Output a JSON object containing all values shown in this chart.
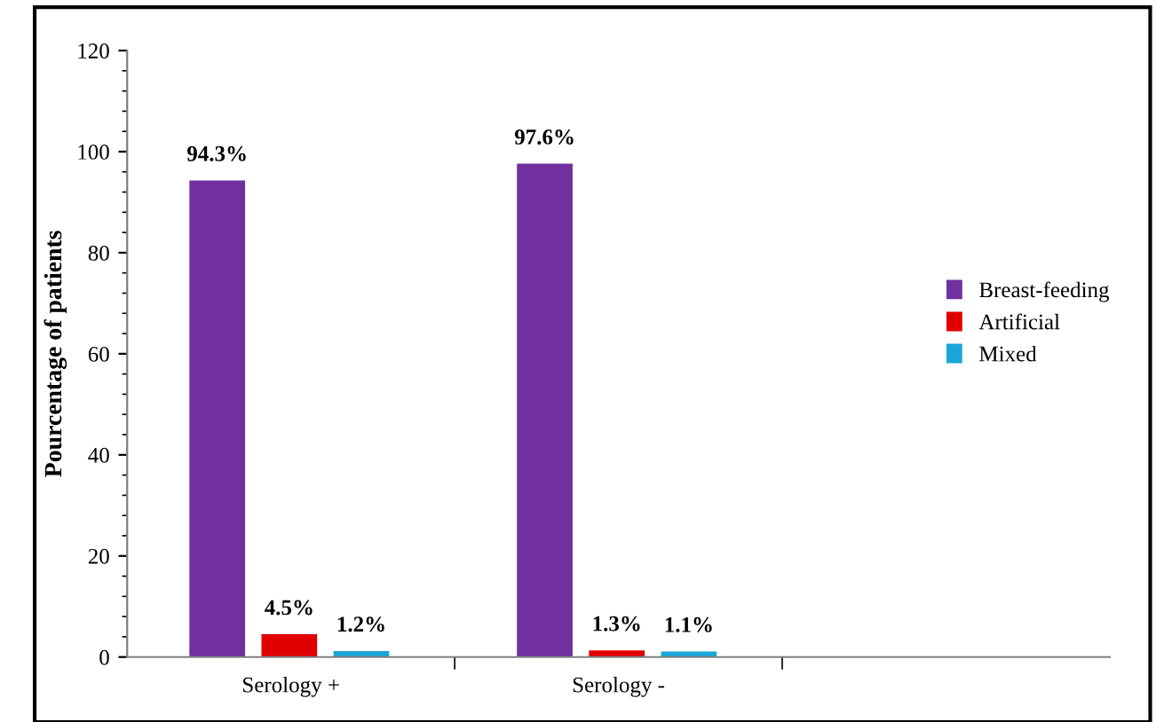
{
  "chart_data": {
    "type": "bar",
    "ylabel": "Pourcentage of patients",
    "categories": [
      "Serology +",
      "Serology -",
      null
    ],
    "series": [
      {
        "name": "Breast-feeding",
        "color": "#7030a0",
        "values": [
          94.3,
          97.6,
          null
        ],
        "value_labels": [
          "94.3%",
          "97.6%",
          null
        ]
      },
      {
        "name": "Artificial",
        "color": "#e00000",
        "values": [
          4.5,
          1.3,
          null
        ],
        "value_labels": [
          "4.5%",
          "1.3%",
          null
        ]
      },
      {
        "name": "Mixed",
        "color": "#1aa6d8",
        "values": [
          1.2,
          1.1,
          null
        ],
        "value_labels": [
          "1.2%",
          "1.1%",
          null
        ]
      }
    ],
    "ylim": [
      0,
      120
    ],
    "yticks": [
      0,
      20,
      40,
      60,
      80,
      100,
      120
    ],
    "grid": false,
    "legend": "right"
  }
}
